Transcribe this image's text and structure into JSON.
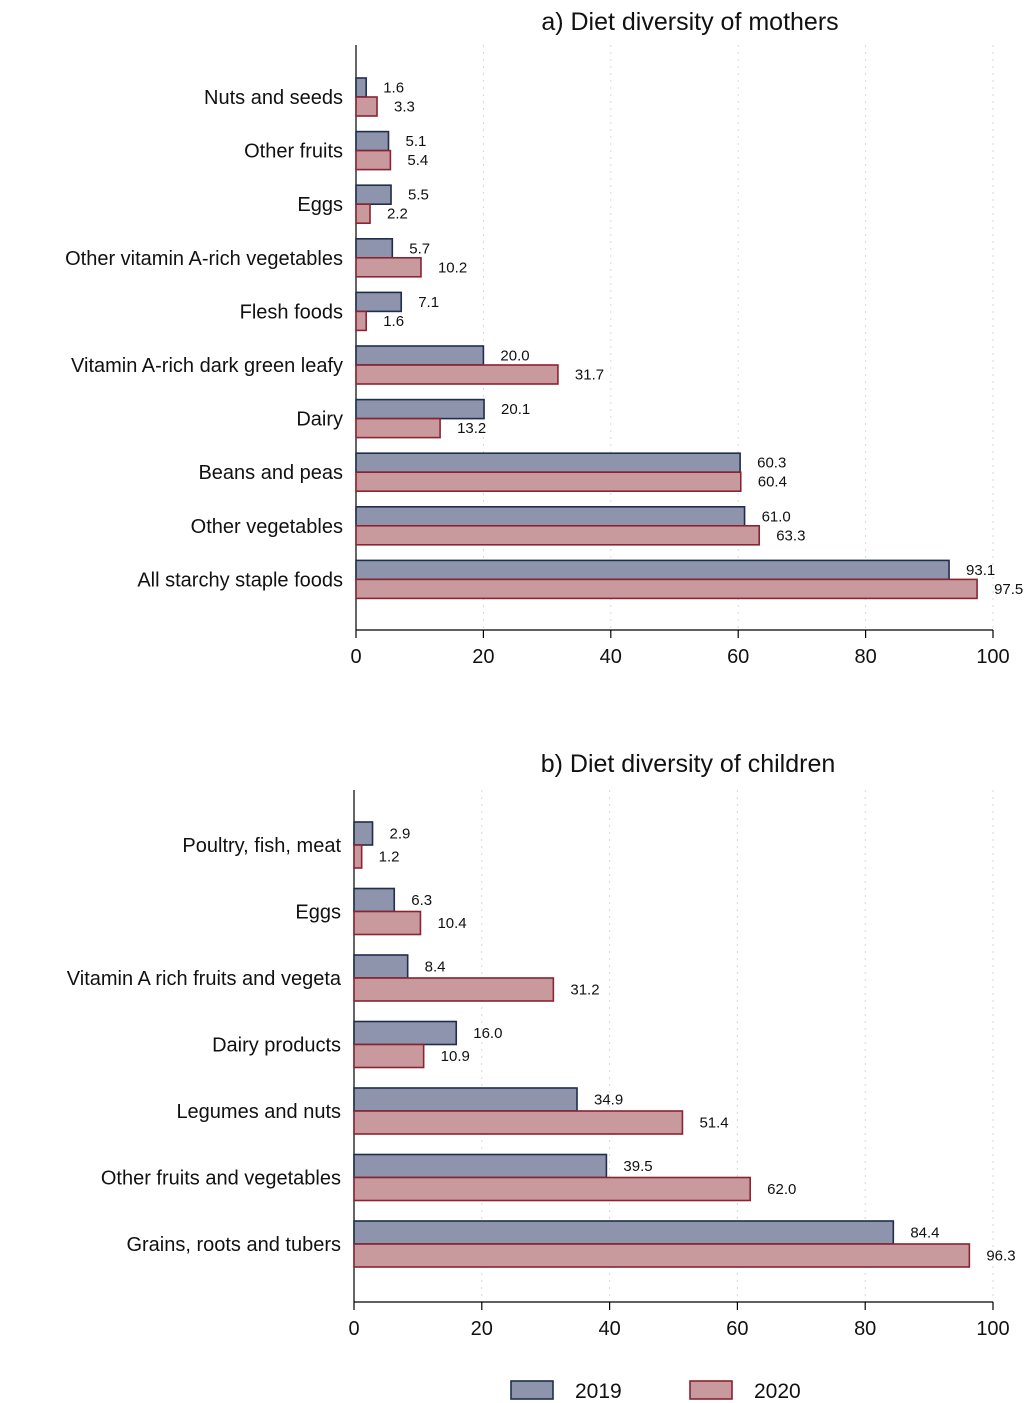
{
  "chart_data": [
    {
      "type": "bar",
      "orientation": "horizontal",
      "title": "a) Diet diversity of mothers",
      "categories": [
        "Nuts and seeds",
        "Other fruits",
        "Eggs",
        "Other vitamin A-rich vegetables",
        "Flesh foods",
        "Vitamin A-rich dark green leafy",
        "Dairy",
        "Beans and peas",
        "Other vegetables",
        "All starchy staple foods"
      ],
      "series": [
        {
          "name": "2019",
          "values": [
            1.6,
            5.1,
            5.5,
            5.7,
            7.1,
            20.0,
            20.1,
            60.3,
            61.0,
            93.1
          ],
          "labels": [
            "1.6",
            "5.1",
            "5.5",
            "5.7",
            "7.1",
            "20.0",
            "20.1",
            "60.3",
            "61.0",
            "93.1"
          ]
        },
        {
          "name": "2020",
          "values": [
            3.3,
            5.4,
            2.2,
            10.2,
            1.6,
            31.7,
            13.2,
            60.4,
            63.3,
            97.5
          ],
          "labels": [
            "3.3",
            "5.4",
            "2.2",
            "10.2",
            "1.6",
            "31.7",
            "13.2",
            "60.4",
            "63.3",
            "97.5"
          ]
        }
      ],
      "xlim": [
        0,
        100
      ],
      "xticks": [
        "0",
        "20",
        "40",
        "60",
        "80",
        "100"
      ],
      "grid": "vertical dotted"
    },
    {
      "type": "bar",
      "orientation": "horizontal",
      "title": "b) Diet diversity of children",
      "categories": [
        "Poultry, fish, meat",
        "Eggs",
        "Vitamin A rich fruits and vegeta",
        "Dairy products",
        "Legumes and nuts",
        "Other fruits and vegetables",
        "Grains, roots and tubers"
      ],
      "series": [
        {
          "name": "2019",
          "values": [
            2.9,
            6.3,
            8.4,
            16.0,
            34.9,
            39.5,
            84.4
          ],
          "labels": [
            "2.9",
            "6.3",
            "8.4",
            "16.0",
            "34.9",
            "39.5",
            "84.4"
          ]
        },
        {
          "name": "2020",
          "values": [
            1.2,
            10.4,
            31.2,
            10.9,
            51.4,
            62.0,
            96.3
          ],
          "labels": [
            "1.2",
            "10.4",
            "31.2",
            "10.9",
            "51.4",
            "62.0",
            "96.3"
          ]
        }
      ],
      "xlim": [
        0,
        100
      ],
      "xticks": [
        "0",
        "20",
        "40",
        "60",
        "80",
        "100"
      ],
      "grid": "vertical dotted"
    }
  ],
  "legend": {
    "position": "bottom-center",
    "items": [
      {
        "label": "2019",
        "color": "#8e94ab",
        "stroke": "#1f2d4e"
      },
      {
        "label": "2020",
        "color": "#c89a9e",
        "stroke": "#8b2332"
      }
    ]
  }
}
